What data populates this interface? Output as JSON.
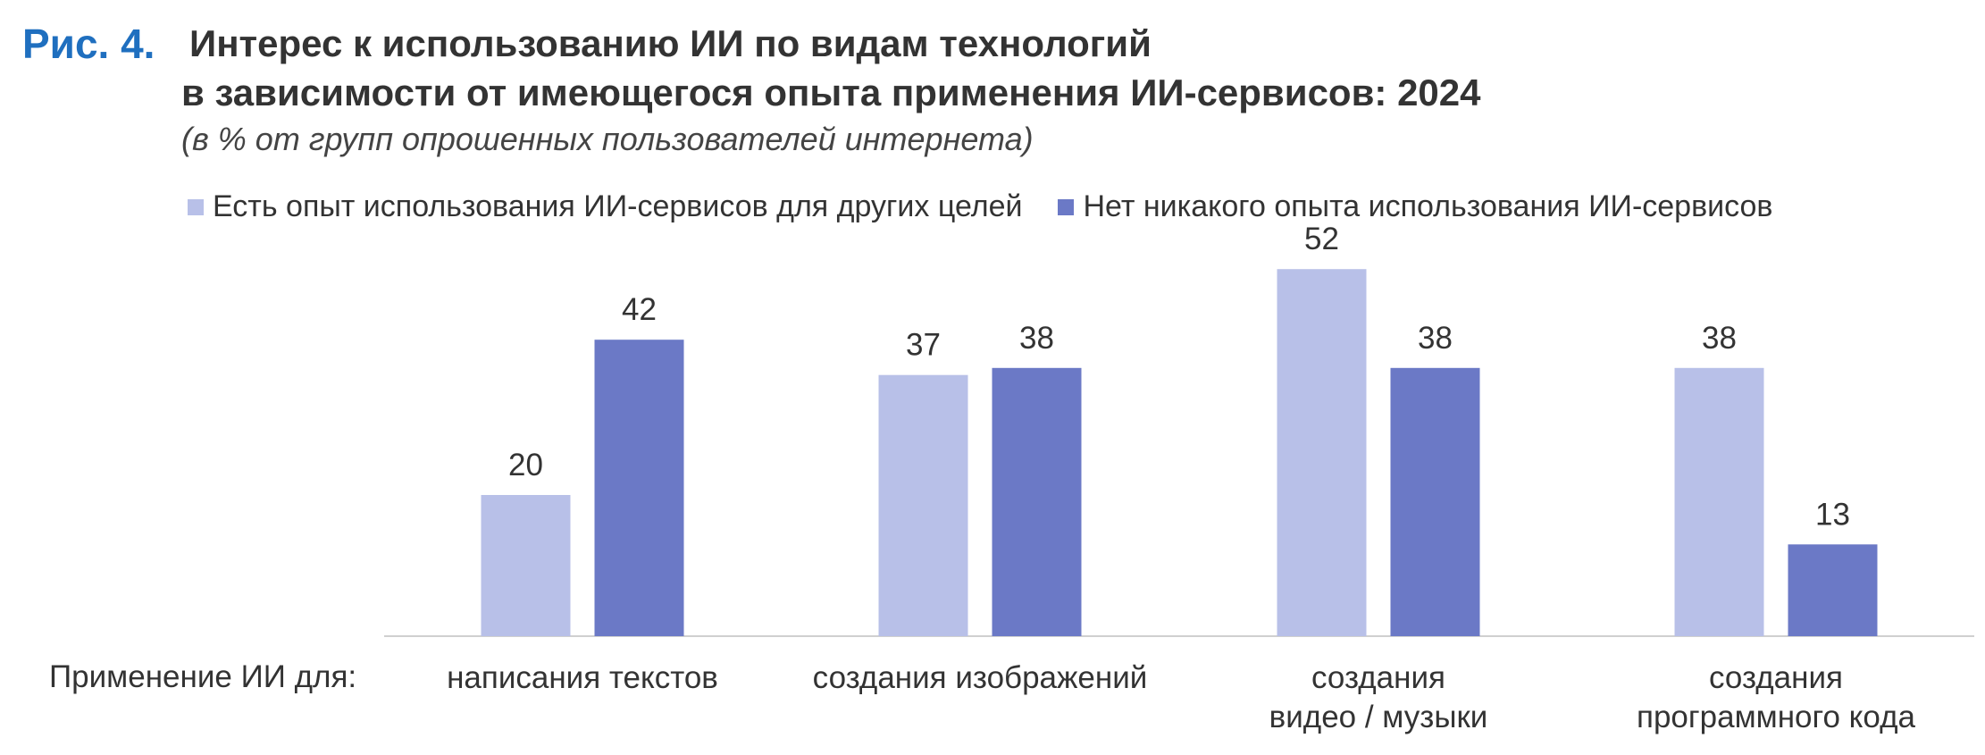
{
  "header": {
    "fig_label": "Рис. 4.",
    "title_line1": "Интерес к использованию ИИ по видам технологий",
    "title_line2": "в зависимости от имеющегося опыта применения ИИ-сервисов: 2024",
    "subtitle": "(в % от групп опрошенных пользователей интернета)"
  },
  "legend": {
    "items": [
      {
        "label": "Есть опыт использования ИИ-сервисов для других целей",
        "color": "#b8c0e8"
      },
      {
        "label": "Нет никакого опыта использования ИИ-сервисов",
        "color": "#6b79c6"
      }
    ]
  },
  "axis": {
    "row_label": "Применение ИИ для:"
  },
  "chart_data": {
    "type": "bar",
    "title": "Интерес к использованию ИИ по видам технологий в зависимости от имеющегося опыта применения ИИ-сервисов: 2024",
    "subtitle": "(в % от групп опрошенных пользователей интернета)",
    "categories": [
      [
        "написания текстов"
      ],
      [
        "создания изображений"
      ],
      [
        "создания",
        "видео / музыки"
      ],
      [
        "создания",
        "программного кода"
      ]
    ],
    "series": [
      {
        "name": "Есть опыт использования ИИ-сервисов для других целей",
        "values": [
          20,
          37,
          52,
          38
        ],
        "color": "#b8c0e8"
      },
      {
        "name": "Нет никакого опыта использования ИИ-сервисов",
        "values": [
          42,
          38,
          38,
          13
        ],
        "color": "#6b79c6"
      }
    ],
    "xlabel": "Применение ИИ для:",
    "ylabel": "",
    "ylim": [
      0,
      60
    ],
    "grid": false,
    "legend_position": "top"
  }
}
